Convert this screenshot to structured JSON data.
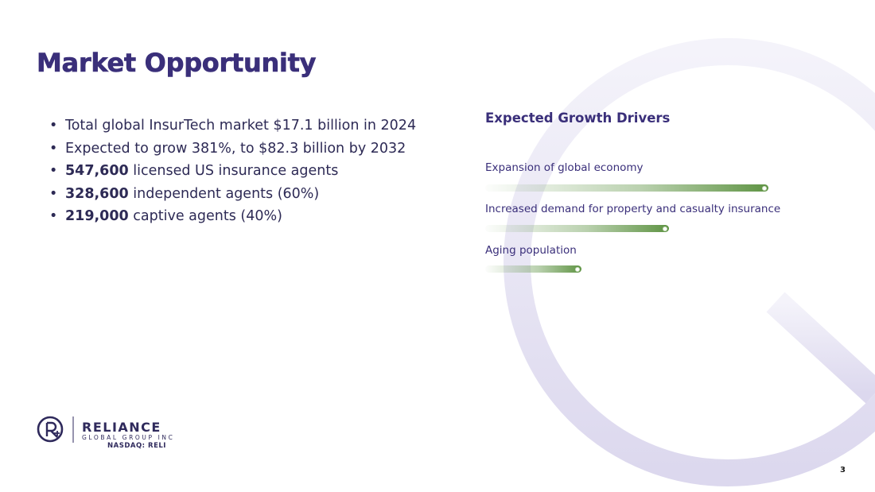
{
  "slide": {
    "title": "Market Opportunity",
    "page_number": "3"
  },
  "bullets": [
    {
      "bold": "",
      "text": "Total global InsurTech market $17.1 billion in 2024"
    },
    {
      "bold": "",
      "text": "Expected to grow 381%, to $82.3 billion by 2032"
    },
    {
      "bold": "547,600",
      "text": " licensed US insurance agents"
    },
    {
      "bold": "328,600",
      "text": " independent agents (60%)"
    },
    {
      "bold": "219,000",
      "text": " captive agents (40%)"
    }
  ],
  "growth_drivers": {
    "title": "Expected Growth Drivers",
    "items": [
      {
        "label": "Expansion of global economy",
        "level": 1.0
      },
      {
        "label": "Increased demand for property and casualty insurance",
        "level": 0.65
      },
      {
        "label": "Aging population",
        "level": 0.34
      }
    ],
    "bar_color": "#5f9444"
  },
  "footer": {
    "company_name": "RELIANCE",
    "company_sub": "GLOBAL GROUP INC",
    "ticker": "NASDAQ: RELI"
  },
  "colors": {
    "title": "#3a2f7a",
    "text": "#2d2a55",
    "watermark": "#e4e1f1"
  }
}
